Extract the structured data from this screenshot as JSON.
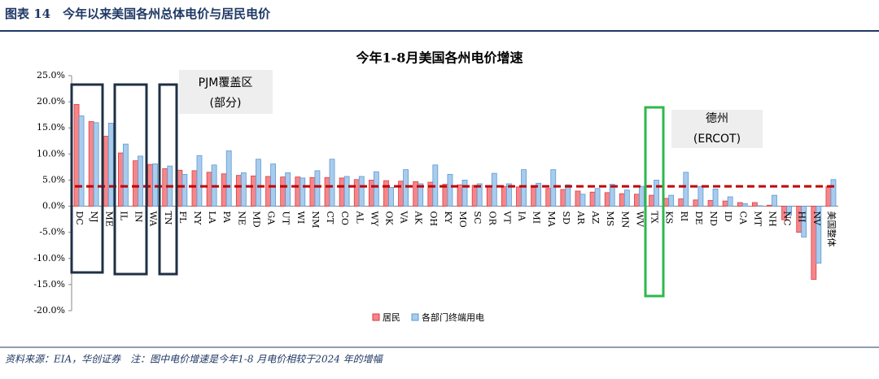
{
  "header": {
    "title": "图表 14　今年以来美国各州总体电价与居民电价"
  },
  "footer": {
    "note": "资料来源：EIA，华创证券　注：图中电价增速是今年1-8 月电价相较于2024 年的增幅"
  },
  "annotations": [
    "PJM覆盖区",
    "(部分)",
    "德州",
    "(ERCOT)"
  ],
  "chart_data": {
    "type": "bar",
    "title": "今年1-8月美国各州电价增速",
    "categories": [
      "DC",
      "NJ",
      "ME",
      "IL",
      "IN",
      "WA",
      "TN",
      "FL",
      "NY",
      "LA",
      "PA",
      "NE",
      "MD",
      "GA",
      "UT",
      "WI",
      "NM",
      "CT",
      "CO",
      "AL",
      "WY",
      "OK",
      "VA",
      "AK",
      "OH",
      "KY",
      "MO",
      "SC",
      "OR",
      "VT",
      "IA",
      "MI",
      "MA",
      "SD",
      "AR",
      "AZ",
      "MS",
      "MN",
      "WV",
      "TX",
      "KS",
      "RI",
      "DE",
      "ND",
      "ID",
      "CA",
      "MT",
      "NH",
      "NC",
      "HI",
      "NV",
      "美国整体"
    ],
    "series": [
      {
        "name": "居民",
        "color": "#f4868a",
        "stroke": "#e0393f",
        "values": [
          19.5,
          16.2,
          13.4,
          10.2,
          8.7,
          8.0,
          7.2,
          6.9,
          6.8,
          6.5,
          6.2,
          5.9,
          5.8,
          5.7,
          5.6,
          5.6,
          5.5,
          5.5,
          5.4,
          5.1,
          5.0,
          4.9,
          4.8,
          4.7,
          4.6,
          4.2,
          4.1,
          4.0,
          3.8,
          3.8,
          3.7,
          3.6,
          3.4,
          3.2,
          2.9,
          2.7,
          2.6,
          2.4,
          2.3,
          2.1,
          1.5,
          1.4,
          1.2,
          1.1,
          1.0,
          0.7,
          0.7,
          0.2,
          -2.6,
          -5.0,
          -14.0,
          3.8
        ]
      },
      {
        "name": "各部门终端用电",
        "color": "#a9cbec",
        "stroke": "#5b9bd5",
        "values": [
          17.3,
          16.0,
          15.9,
          11.9,
          9.6,
          8.1,
          7.7,
          6.1,
          9.7,
          7.9,
          10.6,
          6.4,
          9.0,
          8.1,
          6.4,
          5.4,
          6.8,
          9.0,
          5.7,
          5.7,
          6.6,
          3.6,
          7.0,
          4.3,
          7.9,
          6.1,
          5.0,
          4.3,
          6.3,
          4.3,
          7.0,
          4.4,
          7.0,
          4.1,
          2.3,
          3.4,
          4.2,
          3.1,
          3.8,
          5.0,
          2.1,
          6.5,
          3.8,
          3.3,
          1.8,
          0.5,
          0.1,
          2.1,
          -1.7,
          -5.9,
          -10.9,
          5.1
        ]
      }
    ],
    "reference_line": {
      "value": 3.8,
      "color": "#c00000"
    },
    "ylim": [
      -20,
      25
    ],
    "yticks": [
      {
        "value": -20,
        "label": "-20.0%"
      },
      {
        "value": -15,
        "label": "-15.0%"
      },
      {
        "value": -10,
        "label": "-10.0%"
      },
      {
        "value": -5,
        "label": "-5.0%"
      },
      {
        "value": 0,
        "label": "0.0%"
      },
      {
        "value": 5,
        "label": "5.0%"
      },
      {
        "value": 10,
        "label": "10.0%"
      },
      {
        "value": 15,
        "label": "15.0%"
      },
      {
        "value": 20,
        "label": "20.0%"
      },
      {
        "value": 25,
        "label": "25.0%"
      }
    ],
    "grid": false,
    "legend": "bottom"
  }
}
